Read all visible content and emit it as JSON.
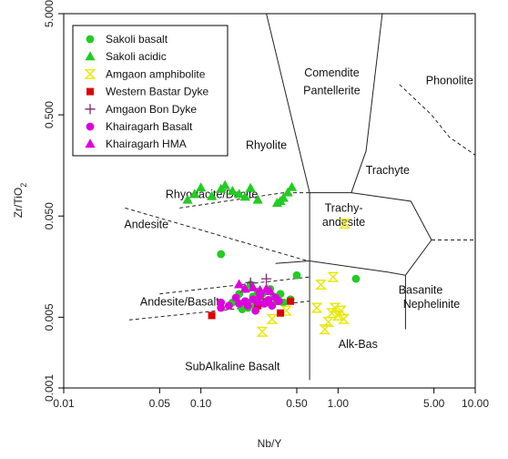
{
  "chart_data": {
    "type": "scatter",
    "title": "",
    "xlabel": "Nb/Y",
    "ylabel": "Zr/TiO2",
    "xscale": "log",
    "yscale": "log",
    "xlim": [
      0.01,
      10
    ],
    "ylim": [
      0.001,
      5
    ],
    "x_ticks": [
      {
        "v": 0.01,
        "label": "0.01"
      },
      {
        "v": 0.05,
        "label": "0.05"
      },
      {
        "v": 0.1,
        "label": "0.10"
      },
      {
        "v": 0.5,
        "label": "0.50"
      },
      {
        "v": 1,
        "label": "1.00"
      },
      {
        "v": 5,
        "label": "5.00"
      },
      {
        "v": 10,
        "label": "10.00"
      }
    ],
    "y_ticks": [
      {
        "v": 0.001,
        "label": "0.001"
      },
      {
        "v": 0.005,
        "label": "0.005"
      },
      {
        "v": 0.05,
        "label": "0.050"
      },
      {
        "v": 0.5,
        "label": "0.500"
      },
      {
        "v": 5,
        "label": "5.000"
      }
    ],
    "legend_position": "top-left",
    "series": [
      {
        "name": "Sakoli basalt",
        "marker": "circle",
        "color": "#22cc22",
        "points": [
          [
            0.14,
            0.021
          ],
          [
            0.17,
            0.007
          ],
          [
            0.18,
            0.0075
          ],
          [
            0.19,
            0.0085
          ],
          [
            0.2,
            0.006
          ],
          [
            0.21,
            0.0095
          ],
          [
            0.22,
            0.007
          ],
          [
            0.23,
            0.0105
          ],
          [
            0.24,
            0.008
          ],
          [
            0.25,
            0.0065
          ],
          [
            0.26,
            0.009
          ],
          [
            0.27,
            0.0075
          ],
          [
            0.28,
            0.0085
          ],
          [
            0.3,
            0.007
          ],
          [
            0.32,
            0.0095
          ],
          [
            0.34,
            0.008
          ],
          [
            0.36,
            0.0072
          ],
          [
            0.38,
            0.0085
          ],
          [
            0.4,
            0.007
          ],
          [
            0.45,
            0.0075
          ],
          [
            0.5,
            0.013
          ],
          [
            0.2,
            0.0068
          ],
          [
            0.22,
            0.0062
          ],
          [
            1.35,
            0.012
          ],
          [
            0.33,
            0.0066
          ]
        ]
      },
      {
        "name": "Sakoli acidic",
        "marker": "triangle",
        "color": "#22cc22",
        "points": [
          [
            0.08,
            0.072
          ],
          [
            0.09,
            0.082
          ],
          [
            0.1,
            0.095
          ],
          [
            0.12,
            0.078
          ],
          [
            0.14,
            0.092
          ],
          [
            0.15,
            0.1
          ],
          [
            0.17,
            0.088
          ],
          [
            0.19,
            0.082
          ],
          [
            0.21,
            0.077
          ],
          [
            0.23,
            0.094
          ],
          [
            0.26,
            0.072
          ],
          [
            0.36,
            0.067
          ],
          [
            0.4,
            0.075
          ],
          [
            0.43,
            0.085
          ],
          [
            0.46,
            0.096
          ],
          [
            0.38,
            0.07
          ]
        ]
      },
      {
        "name": "Amgaon amphibolite",
        "marker": "hourglass",
        "color": "#e8e800",
        "points": [
          [
            0.28,
            0.0036
          ],
          [
            0.33,
            0.0048
          ],
          [
            0.42,
            0.0058
          ],
          [
            0.7,
            0.0062
          ],
          [
            0.75,
            0.0105
          ],
          [
            0.8,
            0.0038
          ],
          [
            0.85,
            0.0045
          ],
          [
            0.9,
            0.0055
          ],
          [
            0.95,
            0.0062
          ],
          [
            1.0,
            0.0052
          ],
          [
            1.05,
            0.0058
          ],
          [
            1.1,
            0.0048
          ],
          [
            1.12,
            0.042
          ],
          [
            0.92,
            0.0125
          ]
        ]
      },
      {
        "name": "Western Bastar Dyke",
        "marker": "square",
        "color": "#dd0000",
        "points": [
          [
            0.12,
            0.0052
          ],
          [
            0.26,
            0.0065
          ],
          [
            0.3,
            0.0071
          ],
          [
            0.38,
            0.0055
          ],
          [
            0.45,
            0.0072
          ]
        ]
      },
      {
        "name": "Amgaon Bon Dyke",
        "marker": "plus",
        "color": "#7a2a6a",
        "points": [
          [
            0.23,
            0.011
          ],
          [
            0.3,
            0.012
          ]
        ]
      },
      {
        "name": "Khairagarh Basalt",
        "marker": "circle",
        "color": "#dd00dd",
        "points": [
          [
            0.14,
            0.007
          ],
          [
            0.16,
            0.0065
          ],
          [
            0.18,
            0.0078
          ],
          [
            0.19,
            0.0068
          ],
          [
            0.21,
            0.0072
          ],
          [
            0.22,
            0.0065
          ],
          [
            0.24,
            0.0075
          ],
          [
            0.26,
            0.007
          ],
          [
            0.27,
            0.0082
          ],
          [
            0.29,
            0.0068
          ],
          [
            0.31,
            0.0074
          ],
          [
            0.33,
            0.0065
          ],
          [
            0.35,
            0.0078
          ],
          [
            0.37,
            0.0072
          ],
          [
            0.14,
            0.0062
          ],
          [
            0.25,
            0.0058
          ]
        ]
      },
      {
        "name": "Khairagarh HMA",
        "marker": "triangle",
        "color": "#dd00dd",
        "points": [
          [
            0.19,
            0.0105
          ],
          [
            0.21,
            0.0095
          ],
          [
            0.24,
            0.0098
          ],
          [
            0.27,
            0.0092
          ],
          [
            0.3,
            0.0095
          ],
          [
            0.32,
            0.009
          ]
        ]
      }
    ],
    "field_labels": [
      {
        "text": "Comendite",
        "x": 0.9,
        "y": 1.2
      },
      {
        "text": "Pantellerite",
        "x": 0.9,
        "y": 0.8
      },
      {
        "text": "Phonolite",
        "x": 6.5,
        "y": 1.0
      },
      {
        "text": "Rhyolite",
        "x": 0.3,
        "y": 0.23
      },
      {
        "text": "Trachyte",
        "x": 2.3,
        "y": 0.13
      },
      {
        "text": "Rhyodacite/Dacite",
        "x": 0.12,
        "y": 0.075
      },
      {
        "text": "Trachy-",
        "x": 1.1,
        "y": 0.055
      },
      {
        "text": "andesite",
        "x": 1.1,
        "y": 0.04
      },
      {
        "text": "Andesite",
        "x": 0.04,
        "y": 0.038
      },
      {
        "text": "Andesite/Basalt",
        "x": 0.07,
        "y": 0.0065
      },
      {
        "text": "Basanite",
        "x": 4.0,
        "y": 0.0085
      },
      {
        "text": "Nephelinite",
        "x": 4.8,
        "y": 0.0062
      },
      {
        "text": "Alk-Bas",
        "x": 1.4,
        "y": 0.0025
      },
      {
        "text": "SubAlkaline Basalt",
        "x": 0.17,
        "y": 0.0015
      }
    ]
  }
}
